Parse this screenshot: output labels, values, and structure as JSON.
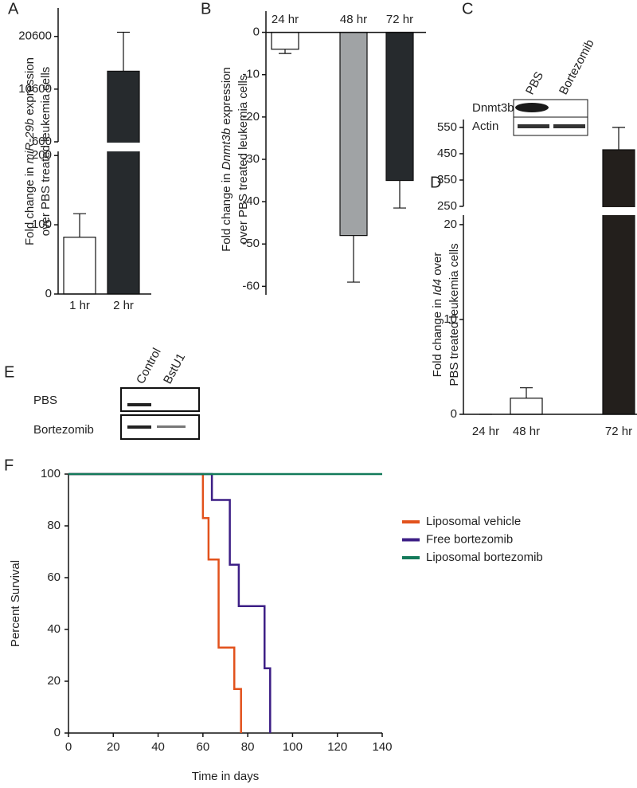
{
  "figure": {
    "panel_labels": [
      "A",
      "B",
      "C",
      "D",
      "E",
      "F"
    ]
  },
  "blots": [
    {
      "lanes": [
        "PBS",
        "Bortezomib"
      ],
      "rows": [
        "Dnmt3b",
        "Actin"
      ]
    },
    {
      "lanes": [
        "Control",
        "BstU1"
      ],
      "rows": [
        "PBS",
        "Bortezomib"
      ]
    }
  ],
  "chart_data": [
    {
      "type": "bar",
      "categories": [
        "1 hr",
        "2 hr"
      ],
      "values": [
        82,
        14000
      ],
      "errors": [
        34,
        7400
      ],
      "colors": [
        "#ffffff",
        "#262a2d"
      ],
      "ylabel": [
        [
          "Fold change in ",
          "miR-29b",
          " expression"
        ],
        [
          "over PBS treated leukemia cells"
        ]
      ],
      "y_segments": [
        {
          "ylim": [
            0,
            206
          ],
          "yticks": [
            0,
            100,
            200
          ]
        },
        {
          "ylim": [
            600,
            26000
          ],
          "yticks": [
            600,
            10600,
            20600
          ]
        }
      ]
    },
    {
      "type": "bar",
      "categories": [
        "24 hr",
        "48 hr",
        "72 hr"
      ],
      "values": [
        -4,
        -48,
        -35
      ],
      "errors": [
        1,
        11,
        6.5
      ],
      "colors": [
        "#ffffff",
        "#a0a3a5",
        "#262a2d"
      ],
      "ylabel": [
        [
          "Fold change in ",
          "Dnmt3b",
          " expression"
        ],
        [
          "over PBS treated leukemia cells"
        ]
      ],
      "y_segments": [
        {
          "ylim": [
            -62,
            5
          ],
          "yticks": [
            0,
            -10,
            -20,
            -30,
            -40,
            -50,
            -60
          ]
        }
      ]
    },
    {
      "type": "bar",
      "categories": [
        "24 hr",
        "48 hr",
        "72 hr"
      ],
      "values": [
        0,
        1.7,
        465
      ],
      "errors": [
        0,
        1.1,
        85
      ],
      "colors": [
        "#ffffff",
        "#ffffff",
        "#231f1c"
      ],
      "ylabel": [
        [
          "Fold change in ",
          "Id4",
          " over"
        ],
        [
          "PBS treated leukemia cells"
        ]
      ],
      "y_segments": [
        {
          "ylim": [
            0,
            21
          ],
          "yticks": [
            0,
            10,
            20
          ]
        },
        {
          "ylim": [
            250,
            580
          ],
          "yticks": [
            250,
            350,
            450,
            550
          ]
        }
      ]
    },
    {
      "type": "line",
      "step": "post",
      "xlim": [
        0,
        140
      ],
      "ylim": [
        0,
        100
      ],
      "xticks": [
        0,
        20,
        40,
        60,
        80,
        100,
        120,
        140
      ],
      "yticks": [
        0,
        20,
        40,
        60,
        80,
        100
      ],
      "xlabel": "Time in days",
      "ylabel": "Percent Survival",
      "series": [
        {
          "name": "Liposomal vehicle",
          "color": "#e2521c",
          "x": [
            0,
            60,
            62.5,
            67,
            74,
            77
          ],
          "values": [
            100,
            83,
            67,
            33,
            17,
            0
          ]
        },
        {
          "name": "Free bortezomib",
          "color": "#3d1f86",
          "x": [
            0,
            64,
            72,
            76,
            87.5,
            90
          ],
          "values": [
            100,
            90,
            65,
            49,
            25,
            0
          ]
        },
        {
          "name": "Liposomal bortezomib",
          "color": "#137a5a",
          "x": [
            0,
            140
          ],
          "values": [
            100,
            100
          ]
        }
      ]
    }
  ]
}
